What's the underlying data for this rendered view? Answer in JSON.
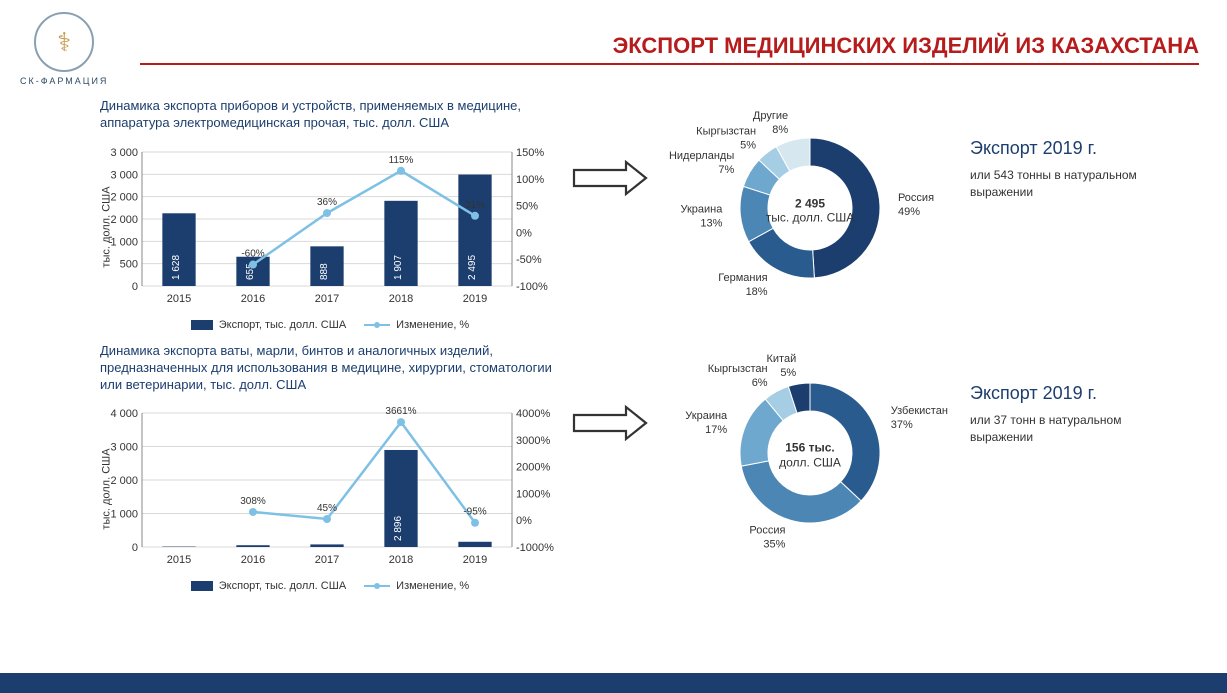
{
  "logo_text": "СК-ФАРМАЦИЯ",
  "title": "ЭКСПОРТ МЕДИЦИНСКИХ ИЗДЕЛИЙ ИЗ КАЗАХСТАНА",
  "chart1": {
    "title": "Динамика экспорта приборов и устройств, применяемых в медицине, аппаратура электромедицинская прочая, тыс. долл. США",
    "type": "combo-bar-line",
    "years": [
      "2015",
      "2016",
      "2017",
      "2018",
      "2019"
    ],
    "bar_values": [
      1628,
      655,
      888,
      1907,
      2495
    ],
    "bar_color": "#1c3e6e",
    "line_values_pct": [
      null,
      -60,
      36,
      115,
      31
    ],
    "line_color": "#7ec1e5",
    "y1_label": "тыс. долл. США",
    "y1_min": 0,
    "y1_max": 3000,
    "y1_step": 500,
    "y2_min": -100,
    "y2_max": 150,
    "y2_step": 50,
    "legend_bar": "Экспорт, тыс. долл. США",
    "legend_line": "Изменение, %",
    "grid_color": "#d9d9d9"
  },
  "donut1": {
    "title": "Экспорт 2019 г.",
    "sub": "или 543 тонны в натуральном выражении",
    "center_value": "2 495",
    "center_unit": "тыс. долл. США",
    "segments": [
      {
        "label": "Россия",
        "pct": 49,
        "color": "#1c3e6e"
      },
      {
        "label": "Германия",
        "pct": 18,
        "color": "#2a5b8f"
      },
      {
        "label": "Украина",
        "pct": 13,
        "color": "#4b86b4"
      },
      {
        "label": "Нидерланды",
        "pct": 7,
        "color": "#6fa8cf"
      },
      {
        "label": "Кыргызстан",
        "pct": 5,
        "color": "#a5cde4"
      },
      {
        "label": "Другие",
        "pct": 8,
        "color": "#d6e7f0"
      }
    ]
  },
  "chart2": {
    "title": "Динамика экспорта ваты, марли, бинтов и аналогичных изделий, предназначенных для использования в медицине, хирургии, стоматологии или ветеринарии, тыс. долл. США",
    "type": "combo-bar-line",
    "years": [
      "2015",
      "2016",
      "2017",
      "2018",
      "2019"
    ],
    "bar_values": [
      13,
      53,
      77,
      2896,
      156
    ],
    "bar_color": "#1c3e6e",
    "line_values_pct": [
      null,
      308,
      45,
      3661,
      -95
    ],
    "line_color": "#7ec1e5",
    "y1_label": "тыс. долл. США",
    "y1_min": 0,
    "y1_max": 4000,
    "y1_step": 1000,
    "y2_min": -1000,
    "y2_max": 4000,
    "y2_step": 1000,
    "legend_bar": "Экспорт, тыс. долл. США",
    "legend_line": "Изменение, %",
    "grid_color": "#d9d9d9"
  },
  "donut2": {
    "title": "Экспорт 2019 г.",
    "sub": "или 37 тонн в натуральном выражении",
    "center_value": "156 тыс.",
    "center_unit": "долл. США",
    "segments": [
      {
        "label": "Узбекистан",
        "pct": 37,
        "color": "#2a5b8f"
      },
      {
        "label": "Россия",
        "pct": 35,
        "color": "#4b86b4"
      },
      {
        "label": "Украина",
        "pct": 17,
        "color": "#6fa8cf"
      },
      {
        "label": "Кыргызстан",
        "pct": 6,
        "color": "#a5cde4"
      },
      {
        "label": "Китай",
        "pct": 5,
        "color": "#1c3e6e"
      }
    ]
  }
}
